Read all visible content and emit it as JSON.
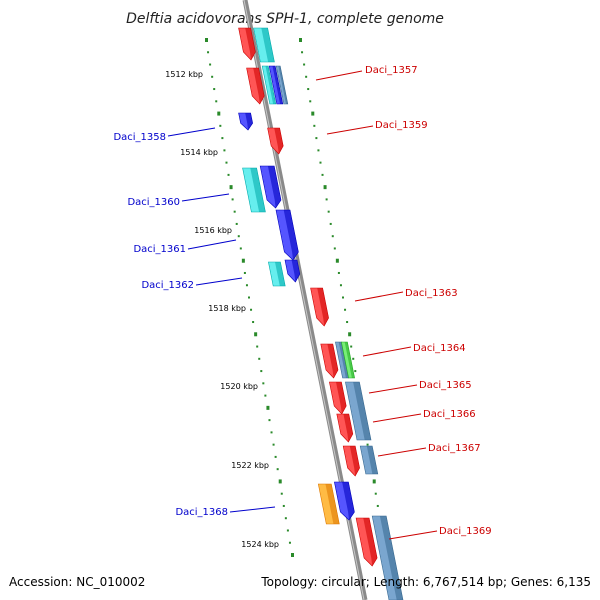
{
  "title": "Delftia acidovorans SPH-1, complete genome",
  "footer": {
    "accession": "Accession: NC_010002",
    "topology": "Topology: circular; Length: 6,767,514 bp; Genes: 6,135"
  },
  "colors": {
    "backbone": "#8a8a8a",
    "tick": "#2a8a2a",
    "forward_label": "#cc0000",
    "reverse_label": "#0000cc",
    "red": "#ee0000",
    "blue": "#0000ee",
    "cyan": "#00cccc",
    "steel": "#4682b4",
    "green": "#33cc33",
    "orange": "#ff9900"
  },
  "kbp_markers": [
    "1512 kbp",
    "1514 kbp",
    "1516 kbp",
    "1518 kbp",
    "1520 kbp",
    "1522 kbp",
    "1524 kbp"
  ],
  "genes": [
    {
      "id": "Daci_1357",
      "strand": "forward"
    },
    {
      "id": "Daci_1358",
      "strand": "reverse"
    },
    {
      "id": "Daci_1359",
      "strand": "forward"
    },
    {
      "id": "Daci_1360",
      "strand": "reverse"
    },
    {
      "id": "Daci_1361",
      "strand": "reverse"
    },
    {
      "id": "Daci_1362",
      "strand": "reverse"
    },
    {
      "id": "Daci_1363",
      "strand": "forward"
    },
    {
      "id": "Daci_1364",
      "strand": "forward"
    },
    {
      "id": "Daci_1365",
      "strand": "forward"
    },
    {
      "id": "Daci_1366",
      "strand": "forward"
    },
    {
      "id": "Daci_1367",
      "strand": "forward"
    },
    {
      "id": "Daci_1368",
      "strand": "reverse"
    },
    {
      "id": "Daci_1369",
      "strand": "forward"
    }
  ]
}
